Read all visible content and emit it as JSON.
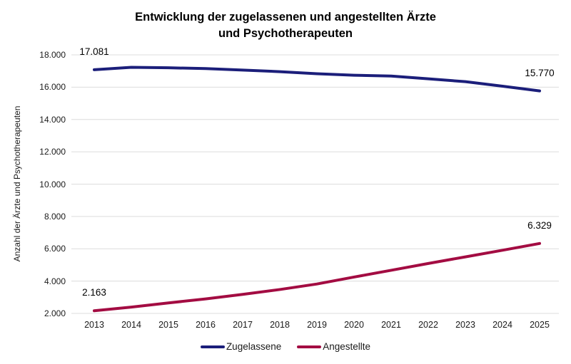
{
  "title": {
    "line1": "Entwicklung der zugelassenen und angestellten Ärzte",
    "line2": "und Psychotherapeuten"
  },
  "y_axis_title": "Anzahl der Ärzte und Psychotherapeuten",
  "chart_data": {
    "type": "line",
    "title": "Entwicklung der zugelassenen und angestellten Ärzte und Psychotherapeuten",
    "xlabel": "",
    "ylabel": "Anzahl der Ärzte und Psychotherapeuten",
    "categories": [
      "2013",
      "2014",
      "2015",
      "2016",
      "2017",
      "2018",
      "2019",
      "2020",
      "2021",
      "2022",
      "2023",
      "2024",
      "2025"
    ],
    "series": [
      {
        "name": "Zugelassene",
        "color": "#1b1e7a",
        "values": [
          17081,
          17230,
          17200,
          17150,
          17060,
          16960,
          16830,
          16740,
          16690,
          16520,
          16340,
          16060,
          15770
        ]
      },
      {
        "name": "Angestellte",
        "color": "#a30c42",
        "values": [
          2163,
          2390,
          2650,
          2900,
          3180,
          3480,
          3820,
          4250,
          4670,
          5090,
          5500,
          5910,
          6329
        ]
      }
    ],
    "ylim": [
      2000,
      18000
    ],
    "y_ticks": [
      {
        "value": 2000,
        "label": "2.000"
      },
      {
        "value": 4000,
        "label": "4.000"
      },
      {
        "value": 6000,
        "label": "6.000"
      },
      {
        "value": 8000,
        "label": "8.000"
      },
      {
        "value": 10000,
        "label": "10.000"
      },
      {
        "value": 12000,
        "label": "12.000"
      },
      {
        "value": 14000,
        "label": "14.000"
      },
      {
        "value": 16000,
        "label": "16.000"
      },
      {
        "value": 18000,
        "label": "18.000"
      }
    ],
    "grid": "horizontal",
    "legend_position": "bottom",
    "annotations": [
      {
        "series": 0,
        "index": 0,
        "label": "17.081"
      },
      {
        "series": 0,
        "index": 12,
        "label": "15.770"
      },
      {
        "series": 1,
        "index": 0,
        "label": "2.163"
      },
      {
        "series": 1,
        "index": 12,
        "label": "6.329"
      }
    ]
  },
  "colors": {
    "grid": "#dcdcdc",
    "axis_text": "#1a1a1a",
    "background": "#ffffff"
  }
}
